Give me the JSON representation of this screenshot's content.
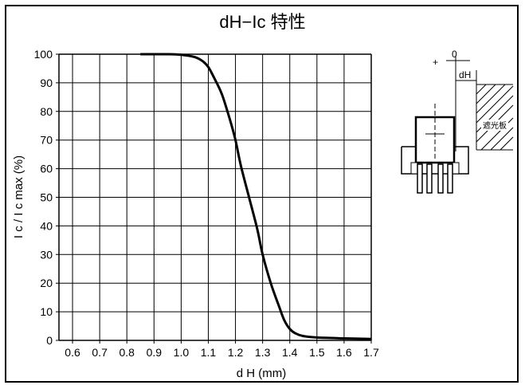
{
  "chart_data": {
    "type": "line",
    "title": "dH−Ic 特性",
    "xlabel": "d H (mm)",
    "ylabel": "I c / I c  max (%)",
    "xlim": [
      0.55,
      1.7
    ],
    "ylim": [
      0,
      100
    ],
    "x_ticks": [
      "0.6",
      "0.7",
      "0.8",
      "0.9",
      "1.0",
      "1.1",
      "1.2",
      "1.3",
      "1.4",
      "1.5",
      "1.6",
      "1.7"
    ],
    "y_ticks": [
      "0",
      "10",
      "20",
      "30",
      "40",
      "50",
      "60",
      "70",
      "80",
      "90",
      "100"
    ],
    "grid": true,
    "series": [
      {
        "x": [
          0.85,
          0.95,
          1.0,
          1.05,
          1.08,
          1.1,
          1.12,
          1.15,
          1.18,
          1.2,
          1.22,
          1.25,
          1.28,
          1.3,
          1.33,
          1.36,
          1.38,
          1.4,
          1.42,
          1.45,
          1.5,
          1.6,
          1.7
        ],
        "y": [
          100,
          100,
          99.8,
          99,
          97.5,
          95.5,
          92,
          86,
          77,
          70,
          61,
          50,
          39,
          30,
          20,
          12,
          7,
          4,
          2.5,
          1.5,
          1.0,
          0.7,
          0.5
        ]
      }
    ]
  },
  "diagram": {
    "zero_label": "0",
    "plus_label": "+",
    "dh_label": "dH",
    "shield_label": "遮光板"
  }
}
